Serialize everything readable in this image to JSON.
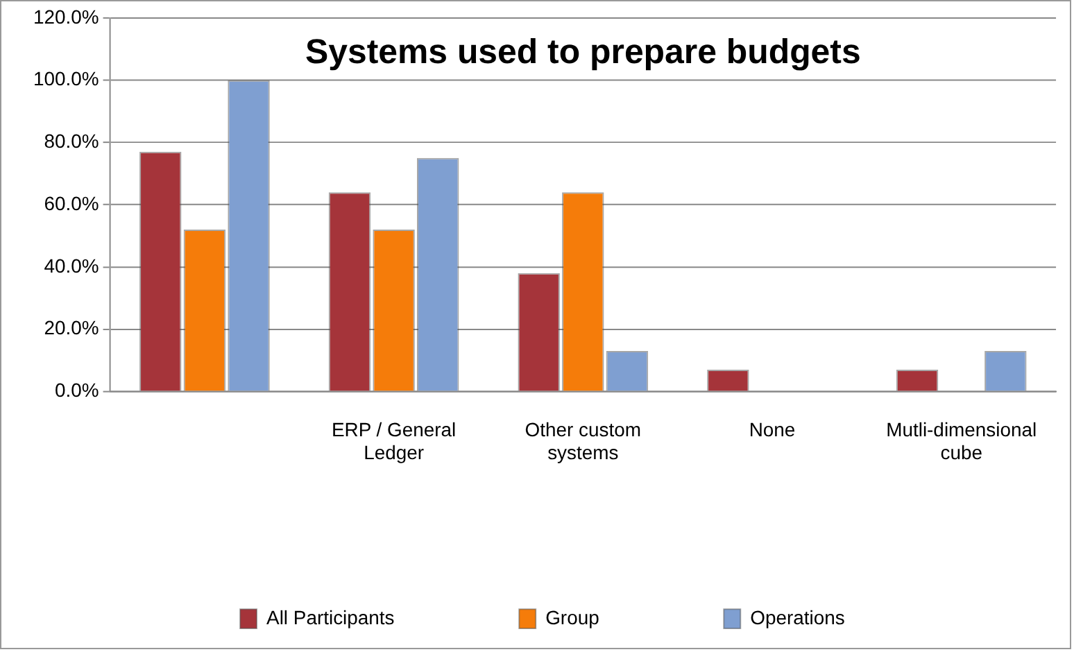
{
  "chart_data": {
    "type": "bar",
    "title": "Systems used to prepare budgets",
    "categories": [
      null,
      "ERP / General Ledger",
      "Other custom systems",
      "None",
      "Mutli-dimensional cube"
    ],
    "series": [
      {
        "name": "All Participants",
        "color": "#a5343a",
        "values": [
          77,
          64,
          38,
          7,
          7
        ]
      },
      {
        "name": "Group",
        "color": "#f57c0a",
        "values": [
          52,
          52,
          64,
          0,
          0
        ]
      },
      {
        "name": "Operations",
        "color": "#7f9fd1",
        "values": [
          100,
          75,
          13,
          0,
          13
        ]
      }
    ],
    "ylim": [
      0,
      120
    ],
    "yticks": [
      {
        "value": 0,
        "label": "0.0%"
      },
      {
        "value": 20,
        "label": "20.0%"
      },
      {
        "value": 40,
        "label": "40.0%"
      },
      {
        "value": 60,
        "label": "60.0%"
      },
      {
        "value": 80,
        "label": "80.0%"
      },
      {
        "value": 100,
        "label": "100.0%"
      },
      {
        "value": 120,
        "label": "120.0%"
      }
    ],
    "grid": "y",
    "legend": "bottom"
  }
}
